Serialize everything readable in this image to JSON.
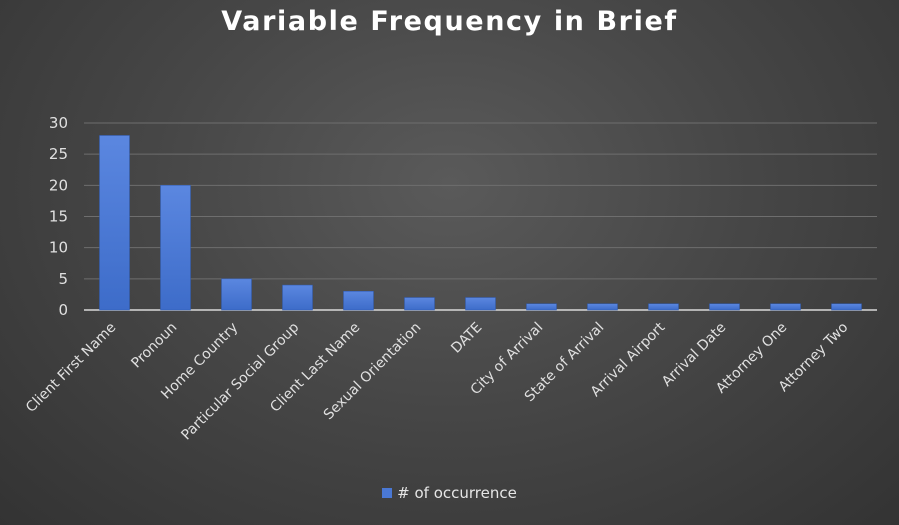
{
  "chart_data": {
    "type": "bar",
    "title": "Variable Frequency in Brief",
    "categories": [
      "Client First Name",
      "Pronoun",
      "Home Country",
      "Particular Social Group",
      "Client Last Name",
      "Sexual Orientation",
      "DATE",
      "City of Arrival",
      "State of Arrival",
      "Arrival Airport",
      "Arrival Date",
      "Attorney One",
      "Attorney Two"
    ],
    "series": [
      {
        "name": "# of occurrence",
        "values": [
          28,
          20,
          5,
          4,
          3,
          2,
          2,
          1,
          1,
          1,
          1,
          1,
          1
        ]
      }
    ],
    "xlabel": "",
    "ylabel": "",
    "ylim": [
      0,
      30
    ],
    "yticks": [
      0,
      5,
      10,
      15,
      20,
      25,
      30
    ],
    "grid": true,
    "legend_position": "bottom",
    "colors": {
      "bar": "#4a78d4",
      "grid": "#6e6e6e",
      "text": "#e0e0e0"
    }
  }
}
